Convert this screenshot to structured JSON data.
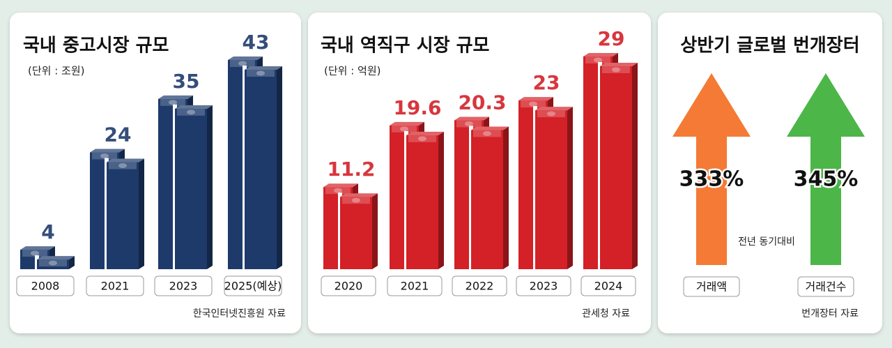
{
  "chart_data": [
    {
      "type": "bar",
      "title": "국내 중고시장 규모",
      "subtitle": "(단위 : 조원)",
      "categories": [
        "2008",
        "2021",
        "2023",
        "2025(예상)"
      ],
      "values": [
        4,
        24,
        35,
        43
      ],
      "color": "#1d3a6b",
      "source": "한국인터넷진흥원 자료"
    },
    {
      "type": "bar",
      "title": "국내 역직구 시장  규모",
      "subtitle": "(단위 : 억원)",
      "categories": [
        "2020",
        "2021",
        "2022",
        "2023",
        "2024"
      ],
      "values": [
        11.2,
        19.6,
        20.3,
        23,
        29
      ],
      "color": "#d42027",
      "source": "관세청 자료"
    },
    {
      "type": "arrow",
      "title": "상반기 글로벌 번개장터",
      "categories": [
        "거래액",
        "거래건수"
      ],
      "values": [
        333,
        345
      ],
      "value_labels": [
        "333%",
        "345%"
      ],
      "colors": [
        "#f47a35",
        "#4cb648"
      ],
      "note": "전년 동기대비",
      "source": "번개장터 자료"
    }
  ]
}
